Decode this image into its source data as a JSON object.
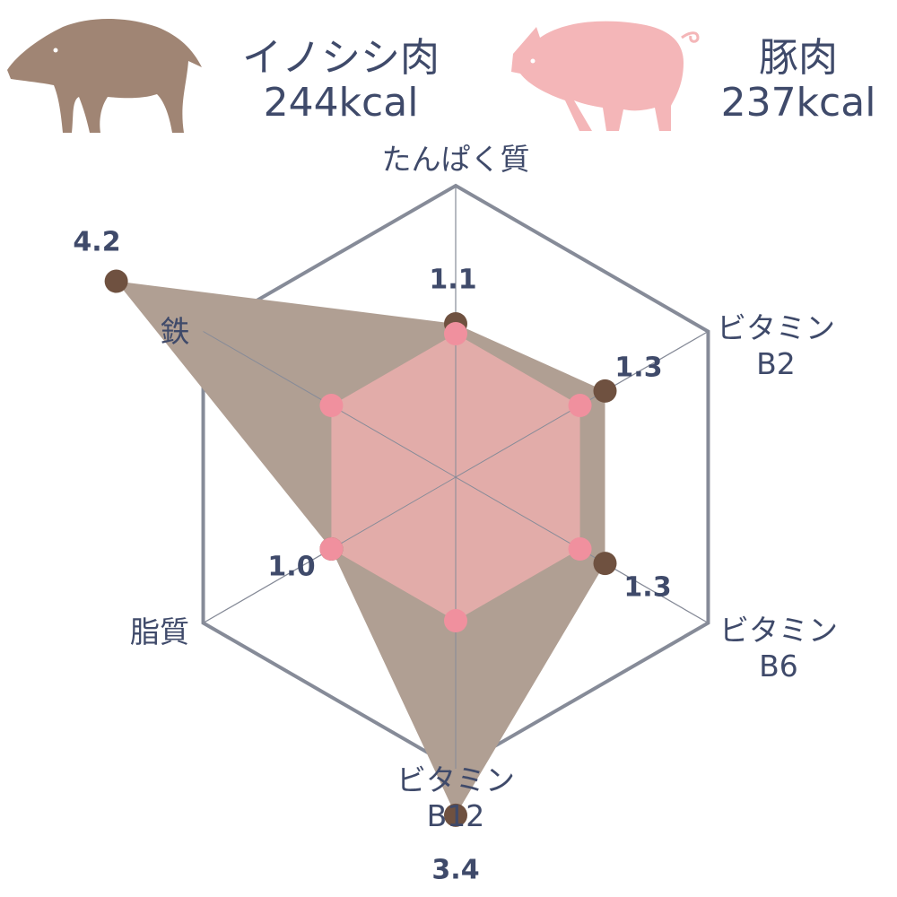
{
  "legend": {
    "boar": {
      "name": "イノシシ肉",
      "kcal": "244kcal",
      "icon": "boar-icon",
      "color": "#a08574"
    },
    "pig": {
      "name": "豚肉",
      "kcal": "237kcal",
      "icon": "pig-icon",
      "color": "#f4b6b8"
    }
  },
  "chart_data": {
    "type": "radar",
    "axes": [
      "たんぱく質",
      "ビタミンB2",
      "ビタミンB6",
      "ビタミンB12",
      "脂質",
      "鉄"
    ],
    "axis_labels": [
      {
        "line1": "たんぱく質",
        "line2": ""
      },
      {
        "line1": "ビタミン",
        "line2": "B2"
      },
      {
        "line1": "ビタミン",
        "line2": "B6"
      },
      {
        "line1": "ビタミン",
        "line2": "B12"
      },
      {
        "line1": "脂質",
        "line2": ""
      },
      {
        "line1": "鉄",
        "line2": ""
      }
    ],
    "series": [
      {
        "name": "イノシシ肉",
        "values": [
          1.1,
          1.3,
          1.3,
          3.4,
          1.0,
          4.2
        ],
        "labels": [
          "1.1",
          "1.3",
          "1.3",
          "3.4",
          "1.0",
          "4.2"
        ],
        "fill": "#b09f93",
        "point": "#6f5140"
      },
      {
        "name": "豚肉",
        "values": [
          1,
          1,
          1,
          1,
          1,
          1
        ],
        "fill": "#e8adac",
        "point": "#f0909e"
      }
    ],
    "grid_color": "#868b98"
  }
}
